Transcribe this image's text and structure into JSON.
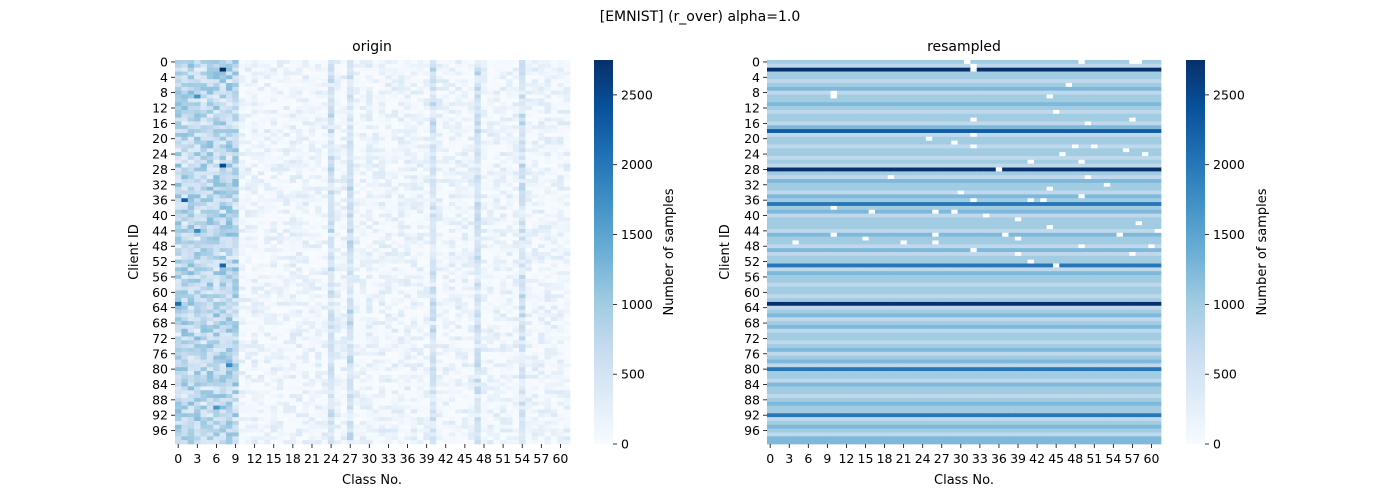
{
  "figure": {
    "suptitle": "[EMNIST] (r_over) alpha=1.0"
  },
  "colors": {
    "cmap": [
      "#f7fbff",
      "#deebf7",
      "#c6dbef",
      "#9ecae1",
      "#6baed6",
      "#4292c6",
      "#2171b5",
      "#08519c",
      "#08306b"
    ],
    "missing": "#ffffff"
  },
  "chart_data": [
    {
      "type": "heatmap",
      "title": "origin",
      "xlabel": "Class No.",
      "ylabel": "Client ID",
      "n_rows": 100,
      "n_cols": 62,
      "row_labels": [
        "0",
        "4",
        "8",
        "12",
        "16",
        "20",
        "24",
        "28",
        "32",
        "36",
        "40",
        "44",
        "48",
        "52",
        "56",
        "60",
        "64",
        "68",
        "72",
        "76",
        "80",
        "84",
        "88",
        "92",
        "96"
      ],
      "col_labels": [
        "0",
        "3",
        "6",
        "9",
        "12",
        "15",
        "18",
        "21",
        "24",
        "27",
        "30",
        "33",
        "36",
        "39",
        "42",
        "45",
        "48",
        "51",
        "54",
        "57",
        "60"
      ],
      "colorbar": {
        "label": "Number of samples",
        "ticks": [
          "0",
          "500",
          "1000",
          "1500",
          "2000",
          "2500"
        ],
        "vmin": 0,
        "vmax": 2750
      },
      "value_summary": {
        "digit_columns": [
          0,
          9
        ],
        "digit_typical_range": [
          400,
          1200
        ],
        "letter_typical_range": [
          0,
          400
        ],
        "bright_columns": [
          24,
          27,
          40,
          47,
          54
        ],
        "max_cell": {
          "row": 2,
          "col": 7,
          "value": 2750
        },
        "high_cells": [
          {
            "row": 27,
            "col": 7,
            "value": 2500
          },
          {
            "row": 36,
            "col": 1,
            "value": 2300
          },
          {
            "row": 53,
            "col": 7,
            "value": 2200
          },
          {
            "row": 63,
            "col": 0,
            "value": 2100
          },
          {
            "row": 44,
            "col": 3,
            "value": 1800
          },
          {
            "row": 9,
            "col": 3,
            "value": 1700
          },
          {
            "row": 79,
            "col": 8,
            "value": 1800
          },
          {
            "row": 90,
            "col": 6,
            "value": 1700
          }
        ]
      }
    },
    {
      "type": "heatmap",
      "title": "resampled",
      "xlabel": "Class No.",
      "ylabel": "Client ID",
      "n_rows": 100,
      "n_cols": 62,
      "row_labels": [
        "0",
        "4",
        "8",
        "12",
        "16",
        "20",
        "24",
        "28",
        "32",
        "36",
        "40",
        "44",
        "48",
        "52",
        "56",
        "60",
        "64",
        "68",
        "72",
        "76",
        "80",
        "84",
        "88",
        "92",
        "96"
      ],
      "col_labels": [
        "0",
        "3",
        "6",
        "9",
        "12",
        "15",
        "18",
        "21",
        "24",
        "27",
        "30",
        "33",
        "36",
        "39",
        "42",
        "45",
        "48",
        "51",
        "54",
        "57",
        "60"
      ],
      "colorbar": {
        "label": "Number of samples",
        "ticks": [
          "0",
          "500",
          "1000",
          "1500",
          "2000",
          "2500"
        ],
        "vmin": 0,
        "vmax": 2750
      },
      "row_values": [
        1000,
        750,
        2750,
        1000,
        1000,
        750,
        1000,
        1250,
        750,
        1000,
        1000,
        1250,
        1000,
        750,
        1000,
        1000,
        750,
        1250,
        2300,
        750,
        1000,
        1000,
        750,
        1000,
        1000,
        750,
        1000,
        750,
        2750,
        1000,
        750,
        1250,
        1000,
        1000,
        750,
        1250,
        1000,
        2000,
        1000,
        1250,
        750,
        1000,
        1000,
        1000,
        750,
        1250,
        1000,
        1000,
        750,
        1250,
        750,
        1000,
        1000,
        2000,
        750,
        1250,
        1000,
        1000,
        750,
        1000,
        1000,
        750,
        1000,
        2750,
        750,
        1000,
        1250,
        750,
        1000,
        1250,
        750,
        1000,
        1000,
        750,
        1000,
        1250,
        750,
        1000,
        1250,
        750,
        2000,
        1000,
        1000,
        750,
        1250,
        1000,
        1000,
        750,
        1000,
        1250,
        1000,
        1000,
        2000,
        750,
        1000,
        1250,
        1000,
        750,
        1250,
        1250
      ],
      "blank_cells": [
        [
          0,
          31
        ],
        [
          0,
          49
        ],
        [
          0,
          57
        ],
        [
          0,
          58
        ],
        [
          1,
          32
        ],
        [
          2,
          32
        ],
        [
          6,
          47
        ],
        [
          8,
          10
        ],
        [
          9,
          10
        ],
        [
          9,
          44
        ],
        [
          13,
          45
        ],
        [
          15,
          32
        ],
        [
          15,
          57
        ],
        [
          16,
          50
        ],
        [
          19,
          32
        ],
        [
          20,
          25
        ],
        [
          21,
          29
        ],
        [
          22,
          32
        ],
        [
          22,
          48
        ],
        [
          22,
          51
        ],
        [
          23,
          56
        ],
        [
          24,
          59
        ],
        [
          24,
          46
        ],
        [
          26,
          41
        ],
        [
          26,
          49
        ],
        [
          28,
          36
        ],
        [
          30,
          19
        ],
        [
          30,
          50
        ],
        [
          32,
          53
        ],
        [
          33,
          44
        ],
        [
          34,
          30
        ],
        [
          35,
          49
        ],
        [
          36,
          32
        ],
        [
          36,
          41
        ],
        [
          36,
          43
        ],
        [
          38,
          10
        ],
        [
          39,
          26
        ],
        [
          39,
          29
        ],
        [
          39,
          16
        ],
        [
          40,
          34
        ],
        [
          41,
          39
        ],
        [
          42,
          58
        ],
        [
          43,
          44
        ],
        [
          44,
          61
        ],
        [
          45,
          10
        ],
        [
          45,
          26
        ],
        [
          45,
          37
        ],
        [
          45,
          55
        ],
        [
          46,
          15
        ],
        [
          46,
          39
        ],
        [
          47,
          4
        ],
        [
          47,
          21
        ],
        [
          47,
          26
        ],
        [
          48,
          49
        ],
        [
          48,
          60
        ],
        [
          49,
          32
        ],
        [
          50,
          57
        ],
        [
          50,
          39
        ],
        [
          52,
          41
        ],
        [
          53,
          45
        ]
      ],
      "blank_cells_note": "white cells indicate zero samples"
    }
  ]
}
